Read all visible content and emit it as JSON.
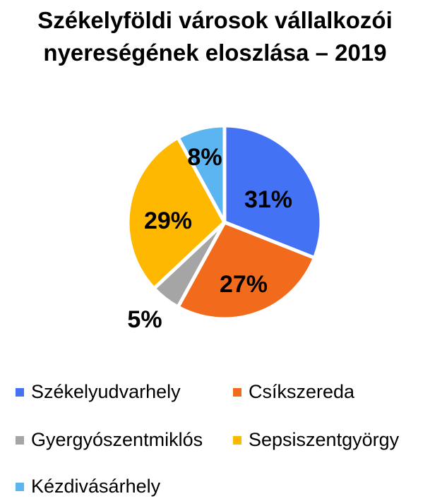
{
  "chart_data": {
    "type": "pie",
    "title_line1": "Székelyföldi városok vállalkozói",
    "title_line2": "nyereségének eloszlása – 2019",
    "slices": [
      {
        "name": "Székelyudvarhely",
        "value": 31,
        "label": "31%",
        "color": "#4472F5"
      },
      {
        "name": "Csíkszereda",
        "value": 27,
        "label": "27%",
        "color": "#F26B1D"
      },
      {
        "name": "Gyergyószentmiklós",
        "value": 5,
        "label": "5%",
        "color": "#A5A5A5"
      },
      {
        "name": "Sepsiszentgyörgy",
        "value": 29,
        "label": "29%",
        "color": "#FFB800"
      },
      {
        "name": "Kézdivásárhely",
        "value": 8,
        "label": "8%",
        "color": "#5BB5F0"
      }
    ],
    "legend_position": "bottom"
  }
}
